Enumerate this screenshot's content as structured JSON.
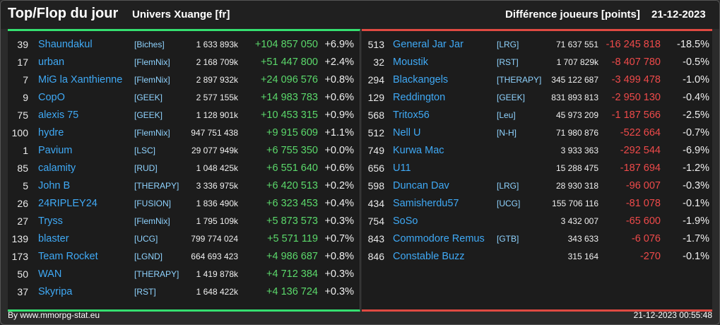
{
  "header": {
    "title": "Top/Flop du jour",
    "subtitle": "Univers Xuange [fr]",
    "metric": "Différence joueurs [points]",
    "date": "21-12-2023"
  },
  "colors": {
    "top_accent": "#35e070",
    "flop_accent": "#e04a42",
    "name": "#3fa9f5",
    "positive": "#5bd96b",
    "negative": "#ef4a4a"
  },
  "top": [
    {
      "rank": "39",
      "name": "Shaundakul",
      "guild": "[Biches]",
      "total": "1 633 893k",
      "diff": "+104 857 050",
      "pct": "+6.9%"
    },
    {
      "rank": "17",
      "name": "urban",
      "guild": "[FlemNix]",
      "total": "2 168 709k",
      "diff": "+51 447 800",
      "pct": "+2.4%"
    },
    {
      "rank": "7",
      "name": "MiG la Xanthienne",
      "guild": "[FlemNix]",
      "total": "2 897 932k",
      "diff": "+24 096 576",
      "pct": "+0.8%"
    },
    {
      "rank": "9",
      "name": "CopO",
      "guild": "[GEEK]",
      "total": "2 577 155k",
      "diff": "+14 983 783",
      "pct": "+0.6%"
    },
    {
      "rank": "75",
      "name": "alexis 75",
      "guild": "[GEEK]",
      "total": "1 128 901k",
      "diff": "+10 453 315",
      "pct": "+0.9%"
    },
    {
      "rank": "100",
      "name": "hydre",
      "guild": "[FlemNix]",
      "total": "947 751 438",
      "diff": "+9 915 609",
      "pct": "+1.1%"
    },
    {
      "rank": "1",
      "name": "Pavium",
      "guild": "[LSC]",
      "total": "29 077 949k",
      "diff": "+6 755 350",
      "pct": "+0.0%"
    },
    {
      "rank": "85",
      "name": "calamity",
      "guild": "[RUD]",
      "total": "1 048 425k",
      "diff": "+6 551 640",
      "pct": "+0.6%"
    },
    {
      "rank": "5",
      "name": "John B",
      "guild": "[THERAPY]",
      "total": "3 336 975k",
      "diff": "+6 420 513",
      "pct": "+0.2%"
    },
    {
      "rank": "26",
      "name": "24RIPLEY24",
      "guild": "[FUSION]",
      "total": "1 836 490k",
      "diff": "+6 323 453",
      "pct": "+0.4%"
    },
    {
      "rank": "27",
      "name": "Tryss",
      "guild": "[FlemNix]",
      "total": "1 795 109k",
      "diff": "+5 873 573",
      "pct": "+0.3%"
    },
    {
      "rank": "139",
      "name": "blaster",
      "guild": "[UCG]",
      "total": "799 774 024",
      "diff": "+5 571 119",
      "pct": "+0.7%"
    },
    {
      "rank": "173",
      "name": "Team Rocket",
      "guild": "[LGND]",
      "total": "664 693 423",
      "diff": "+4 986 687",
      "pct": "+0.8%"
    },
    {
      "rank": "50",
      "name": "WAN",
      "guild": "[THERAPY]",
      "total": "1 419 878k",
      "diff": "+4 712 384",
      "pct": "+0.3%"
    },
    {
      "rank": "37",
      "name": "Skyripa",
      "guild": "[RST]",
      "total": "1 648 422k",
      "diff": "+4 136 724",
      "pct": "+0.3%"
    }
  ],
  "flop": [
    {
      "rank": "513",
      "name": "General Jar Jar",
      "guild": "[LRG]",
      "total": "71 637 551",
      "diff": "-16 245 818",
      "pct": "-18.5%"
    },
    {
      "rank": "32",
      "name": "Moustik",
      "guild": "[RST]",
      "total": "1 707 829k",
      "diff": "-8 407 780",
      "pct": "-0.5%"
    },
    {
      "rank": "294",
      "name": "Blackangels",
      "guild": "[THERAPY]",
      "total": "345 122 687",
      "diff": "-3 499 478",
      "pct": "-1.0%"
    },
    {
      "rank": "129",
      "name": "Reddington",
      "guild": "[GEEK]",
      "total": "831 893 813",
      "diff": "-2 950 130",
      "pct": "-0.4%"
    },
    {
      "rank": "568",
      "name": "Tritox56",
      "guild": "[Leu]",
      "total": "45 973 209",
      "diff": "-1 187 566",
      "pct": "-2.5%"
    },
    {
      "rank": "512",
      "name": "Nell U",
      "guild": "[N-H]",
      "total": "71 980 876",
      "diff": "-522 664",
      "pct": "-0.7%"
    },
    {
      "rank": "749",
      "name": "Kurwa Mac",
      "guild": "",
      "total": "3 933 363",
      "diff": "-292 544",
      "pct": "-6.9%"
    },
    {
      "rank": "656",
      "name": "U11",
      "guild": "",
      "total": "15 288 475",
      "diff": "-187 694",
      "pct": "-1.2%"
    },
    {
      "rank": "598",
      "name": "Duncan Dav",
      "guild": "[LRG]",
      "total": "28 930 318",
      "diff": "-96 007",
      "pct": "-0.3%"
    },
    {
      "rank": "434",
      "name": "Samisherdu57",
      "guild": "[UCG]",
      "total": "155 706 116",
      "diff": "-81 078",
      "pct": "-0.1%"
    },
    {
      "rank": "754",
      "name": "SoSo",
      "guild": "",
      "total": "3 432 007",
      "diff": "-65 600",
      "pct": "-1.9%"
    },
    {
      "rank": "843",
      "name": "Commodore Remus",
      "guild": "[GTB]",
      "total": "343 633",
      "diff": "-6 076",
      "pct": "-1.7%"
    },
    {
      "rank": "846",
      "name": "Constable Buzz",
      "guild": "",
      "total": "315 164",
      "diff": "-270",
      "pct": "-0.1%"
    }
  ],
  "footer": {
    "credit": "By www.mmorpg-stat.eu",
    "timestamp": "21-12-2023 00:55:48"
  }
}
